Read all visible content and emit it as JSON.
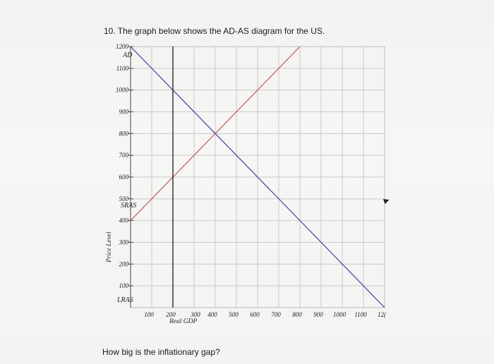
{
  "question": "10. The graph below shows the AD-AS diagram for the US.",
  "followup": "How big is the inflationary gap?",
  "colors": {
    "ad": "#3d3fa8",
    "sras": "#c05a5e",
    "lras": "#2a2a2a",
    "grid": "#c9c9c9"
  },
  "chart_data": {
    "type": "line",
    "xlabel": "Real GDP",
    "ylabel": "Price Level",
    "xlim": [
      0,
      1200
    ],
    "ylim": [
      0,
      1200
    ],
    "x_ticks": [
      "100",
      "200",
      "300",
      "400",
      "500",
      "600",
      "700",
      "800",
      "900",
      "1000",
      "1100",
      "12("
    ],
    "y_ticks": [
      "100",
      "200",
      "300",
      "400",
      "500",
      "600",
      "700",
      "800",
      "900",
      "1000",
      "1100",
      "1200"
    ],
    "grid": true,
    "series": [
      {
        "name": "AD",
        "points": [
          [
            0,
            1200
          ],
          [
            1200,
            0
          ]
        ]
      },
      {
        "name": "SRAS",
        "points": [
          [
            0,
            400
          ],
          [
            800,
            1200
          ]
        ]
      },
      {
        "name": "LRAS",
        "points": [
          [
            200,
            0
          ],
          [
            200,
            1200
          ]
        ]
      }
    ],
    "labels": {
      "ad": "AD",
      "sras": "SRAS",
      "lras": "LRAS"
    }
  }
}
